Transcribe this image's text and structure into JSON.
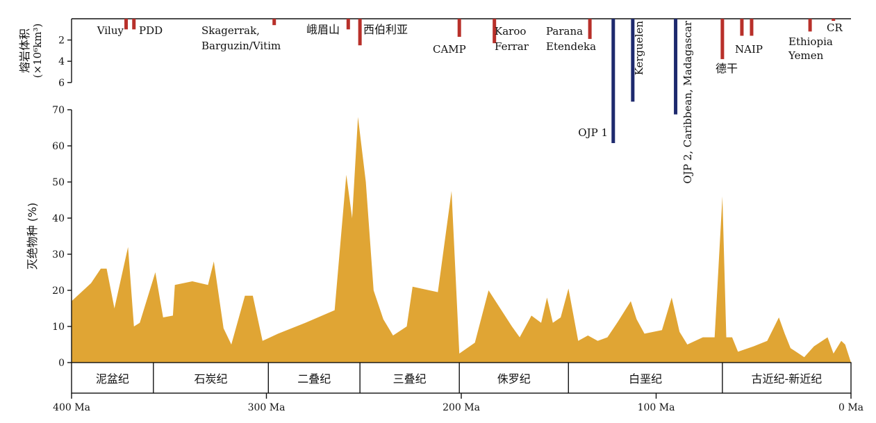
{
  "chart_data": {
    "type": "area",
    "x_label": "",
    "x_ticks": [
      {
        "value": 400,
        "label": "400 Ma"
      },
      {
        "value": 300,
        "label": "300 Ma"
      },
      {
        "value": 200,
        "label": "200 Ma"
      },
      {
        "value": 100,
        "label": "100 Ma"
      },
      {
        "value": 0,
        "label": "0 Ma"
      }
    ],
    "xlim": [
      400,
      0
    ],
    "extinction": {
      "ylabel": "灭绝物种 (%)",
      "ylim": [
        0,
        70
      ],
      "y_ticks": [
        0,
        10,
        20,
        30,
        40,
        50,
        60,
        70
      ],
      "color": "#E0A534",
      "points": [
        [
          400,
          17
        ],
        [
          390,
          22
        ],
        [
          385,
          26
        ],
        [
          382,
          26
        ],
        [
          378,
          15
        ],
        [
          371,
          32
        ],
        [
          368,
          10
        ],
        [
          365,
          11
        ],
        [
          357,
          25
        ],
        [
          353,
          12.5
        ],
        [
          348,
          13
        ],
        [
          347,
          21.5
        ],
        [
          338,
          22.5
        ],
        [
          330,
          21.5
        ],
        [
          327,
          28
        ],
        [
          322,
          9.5
        ],
        [
          318,
          5
        ],
        [
          311,
          18.5
        ],
        [
          307,
          18.5
        ],
        [
          302,
          6
        ],
        [
          294,
          8
        ],
        [
          280,
          11
        ],
        [
          265,
          14.5
        ],
        [
          259,
          52
        ],
        [
          256,
          40
        ],
        [
          253,
          68
        ],
        [
          249,
          50
        ],
        [
          245,
          20
        ],
        [
          240,
          12
        ],
        [
          235,
          7.5
        ],
        [
          228,
          10
        ],
        [
          225,
          21
        ],
        [
          212,
          19.5
        ],
        [
          205,
          47.5
        ],
        [
          201,
          2.5
        ],
        [
          193,
          5.5
        ],
        [
          186,
          20
        ],
        [
          180,
          15
        ],
        [
          174,
          10
        ],
        [
          170,
          7
        ],
        [
          164,
          13
        ],
        [
          159,
          11
        ],
        [
          156,
          18
        ],
        [
          153,
          11
        ],
        [
          149,
          12.5
        ],
        [
          145,
          20.5
        ],
        [
          140,
          6
        ],
        [
          135,
          7.5
        ],
        [
          130,
          6
        ],
        [
          125,
          7
        ],
        [
          120,
          11
        ],
        [
          113,
          17
        ],
        [
          110,
          12
        ],
        [
          106,
          8
        ],
        [
          97,
          9
        ],
        [
          92,
          18
        ],
        [
          88,
          8.5
        ],
        [
          84,
          5
        ],
        [
          76,
          7
        ],
        [
          70,
          7
        ],
        [
          66,
          46
        ],
        [
          64,
          7
        ],
        [
          61,
          7
        ],
        [
          58,
          3
        ],
        [
          50,
          4.5
        ],
        [
          43,
          6
        ],
        [
          37,
          12.5
        ],
        [
          34,
          8
        ],
        [
          31,
          4
        ],
        [
          24,
          1.5
        ],
        [
          19,
          4.5
        ],
        [
          12,
          7
        ],
        [
          9,
          2.5
        ],
        [
          5,
          6
        ],
        [
          3,
          5
        ],
        [
          0,
          0
        ]
      ]
    },
    "lip_volume": {
      "ylabel_line1": "熔岩体积",
      "ylabel_line2": "(×10⁶km³)",
      "y_ticks": [
        2,
        4,
        6
      ],
      "ylim": [
        0,
        6
      ],
      "continental_color": "#B8302A",
      "oceanic_color": "#1E2A6E",
      "events": [
        {
          "label": "Viluy",
          "age": 372,
          "volume": 1.0,
          "kind": "continental"
        },
        {
          "label": "PDD",
          "age": 368,
          "volume": 1.0,
          "kind": "continental"
        },
        {
          "label": "Skagerrak,",
          "label2": "Barguzin/Vitim",
          "age": 296,
          "volume": 0.6,
          "kind": "continental"
        },
        {
          "label": "峨眉山",
          "age": 258,
          "volume": 1.0,
          "kind": "continental"
        },
        {
          "label": "西伯利亚",
          "age": 252,
          "volume": 2.5,
          "kind": "continental"
        },
        {
          "label": "CAMP",
          "age": 201,
          "volume": 1.7,
          "kind": "continental"
        },
        {
          "label": "Karoo",
          "label2": "Ferrar",
          "age": 183,
          "volume": 2.3,
          "kind": "continental"
        },
        {
          "label": "Parana",
          "label2": "Etendeka",
          "age": 134,
          "volume": 1.9,
          "kind": "continental"
        },
        {
          "label": "OJP 1",
          "age": 122,
          "volume": 11.7,
          "kind": "oceanic"
        },
        {
          "label": "Kerguelen",
          "age": 112,
          "volume": 7.8,
          "kind": "oceanic"
        },
        {
          "label": "OJP 2, Caribbean, Madagascar",
          "age": 90,
          "volume": 9.0,
          "kind": "oceanic"
        },
        {
          "label": "德干",
          "age": 66,
          "volume": 3.8,
          "kind": "continental"
        },
        {
          "label": "NAIP",
          "age": 56,
          "volume": 1.6,
          "kind": "continental"
        },
        {
          "label": "",
          "age": 51,
          "volume": 1.6,
          "kind": "continental"
        },
        {
          "label": "Ethiopia",
          "label2": "Yemen",
          "age": 21,
          "volume": 1.2,
          "kind": "continental"
        },
        {
          "label": "CR",
          "age": 9,
          "volume": 0.2,
          "kind": "continental"
        }
      ]
    },
    "periods": [
      {
        "label": "泥盆纪",
        "start": 400,
        "end": 358
      },
      {
        "label": "石炭纪",
        "start": 358,
        "end": 299
      },
      {
        "label": "二叠纪",
        "start": 299,
        "end": 252
      },
      {
        "label": "三叠纪",
        "start": 252,
        "end": 201
      },
      {
        "label": "侏罗纪",
        "start": 201,
        "end": 145
      },
      {
        "label": "白垩纪",
        "start": 145,
        "end": 66
      },
      {
        "label": "古近纪-新近纪",
        "start": 66,
        "end": 0
      }
    ]
  }
}
